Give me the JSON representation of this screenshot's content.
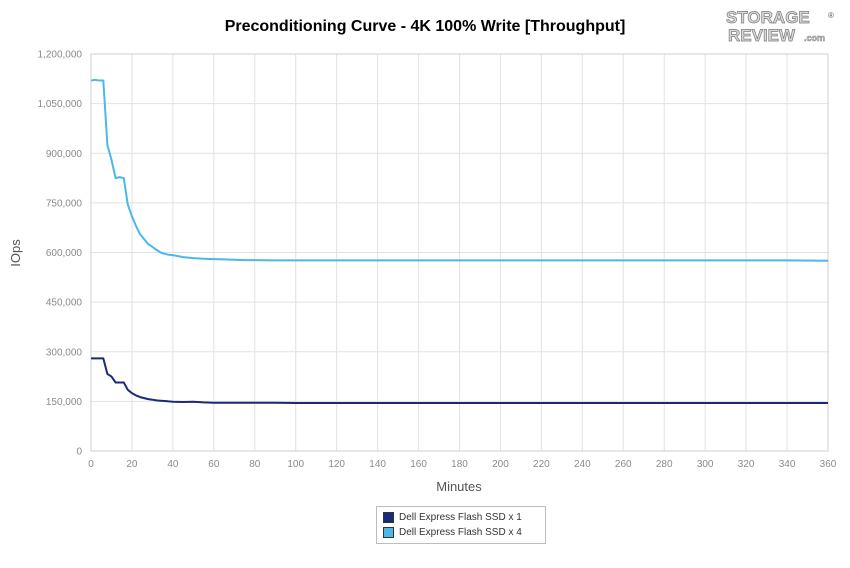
{
  "chart_data": {
    "type": "line",
    "title": "Preconditioning Curve - 4K 100% Write [Throughput]",
    "xlabel": "Minutes",
    "ylabel": "IOps",
    "xlim": [
      0,
      360
    ],
    "ylim": [
      0,
      1200000
    ],
    "x_ticks": [
      0,
      20,
      40,
      60,
      80,
      100,
      120,
      140,
      160,
      180,
      200,
      220,
      240,
      260,
      280,
      300,
      320,
      340,
      360
    ],
    "y_ticks": [
      0,
      150000,
      300000,
      450000,
      600000,
      750000,
      900000,
      1050000,
      1200000
    ],
    "y_tick_labels": [
      "0",
      "150,000",
      "300,000",
      "450,000",
      "600,000",
      "750,000",
      "900,000",
      "1,050,000",
      "1,200,000"
    ],
    "grid": true,
    "legend_position": "bottom-center",
    "series": [
      {
        "name": "Dell Express Flash SSD x 1",
        "color": "#1a2a7a",
        "x": [
          0,
          2,
          4,
          6,
          8,
          10,
          12,
          14,
          16,
          18,
          20,
          22,
          24,
          26,
          28,
          30,
          32,
          34,
          36,
          38,
          40,
          45,
          50,
          55,
          60,
          65,
          70,
          75,
          80,
          90,
          100,
          120,
          140,
          160,
          180,
          200,
          220,
          240,
          260,
          280,
          300,
          320,
          340,
          360
        ],
        "values": [
          280000,
          280000,
          280000,
          280000,
          233000,
          225000,
          207000,
          207000,
          207000,
          185000,
          175000,
          168000,
          163000,
          160000,
          157000,
          155000,
          153000,
          152000,
          151000,
          150000,
          149000,
          148000,
          149000,
          147000,
          146000,
          146000,
          146000,
          146000,
          146000,
          146000,
          145000,
          145000,
          145000,
          145000,
          145000,
          145000,
          145000,
          145000,
          145000,
          145000,
          145000,
          145000,
          145000,
          145000
        ]
      },
      {
        "name": "Dell Express Flash SSD x 4",
        "color": "#4bb8e8",
        "x": [
          0,
          2,
          4,
          6,
          8,
          10,
          12,
          14,
          16,
          18,
          20,
          22,
          24,
          26,
          28,
          30,
          32,
          34,
          36,
          38,
          40,
          45,
          50,
          55,
          60,
          65,
          70,
          75,
          80,
          90,
          100,
          120,
          140,
          160,
          180,
          200,
          220,
          240,
          260,
          280,
          300,
          320,
          340,
          360
        ],
        "values": [
          1120000,
          1122000,
          1120000,
          1120000,
          925000,
          880000,
          825000,
          828000,
          825000,
          745000,
          710000,
          680000,
          655000,
          640000,
          625000,
          617000,
          608000,
          600000,
          596000,
          593000,
          592000,
          586000,
          583000,
          581000,
          580000,
          579000,
          578000,
          577000,
          577000,
          576000,
          576000,
          576000,
          576000,
          576000,
          576000,
          576000,
          576000,
          576000,
          576000,
          576000,
          576000,
          576000,
          576000,
          575000
        ]
      }
    ]
  },
  "logo": {
    "line1": "STORAGE",
    "line2": "REVIEW",
    "suffix": ".com",
    "mark": "®"
  }
}
